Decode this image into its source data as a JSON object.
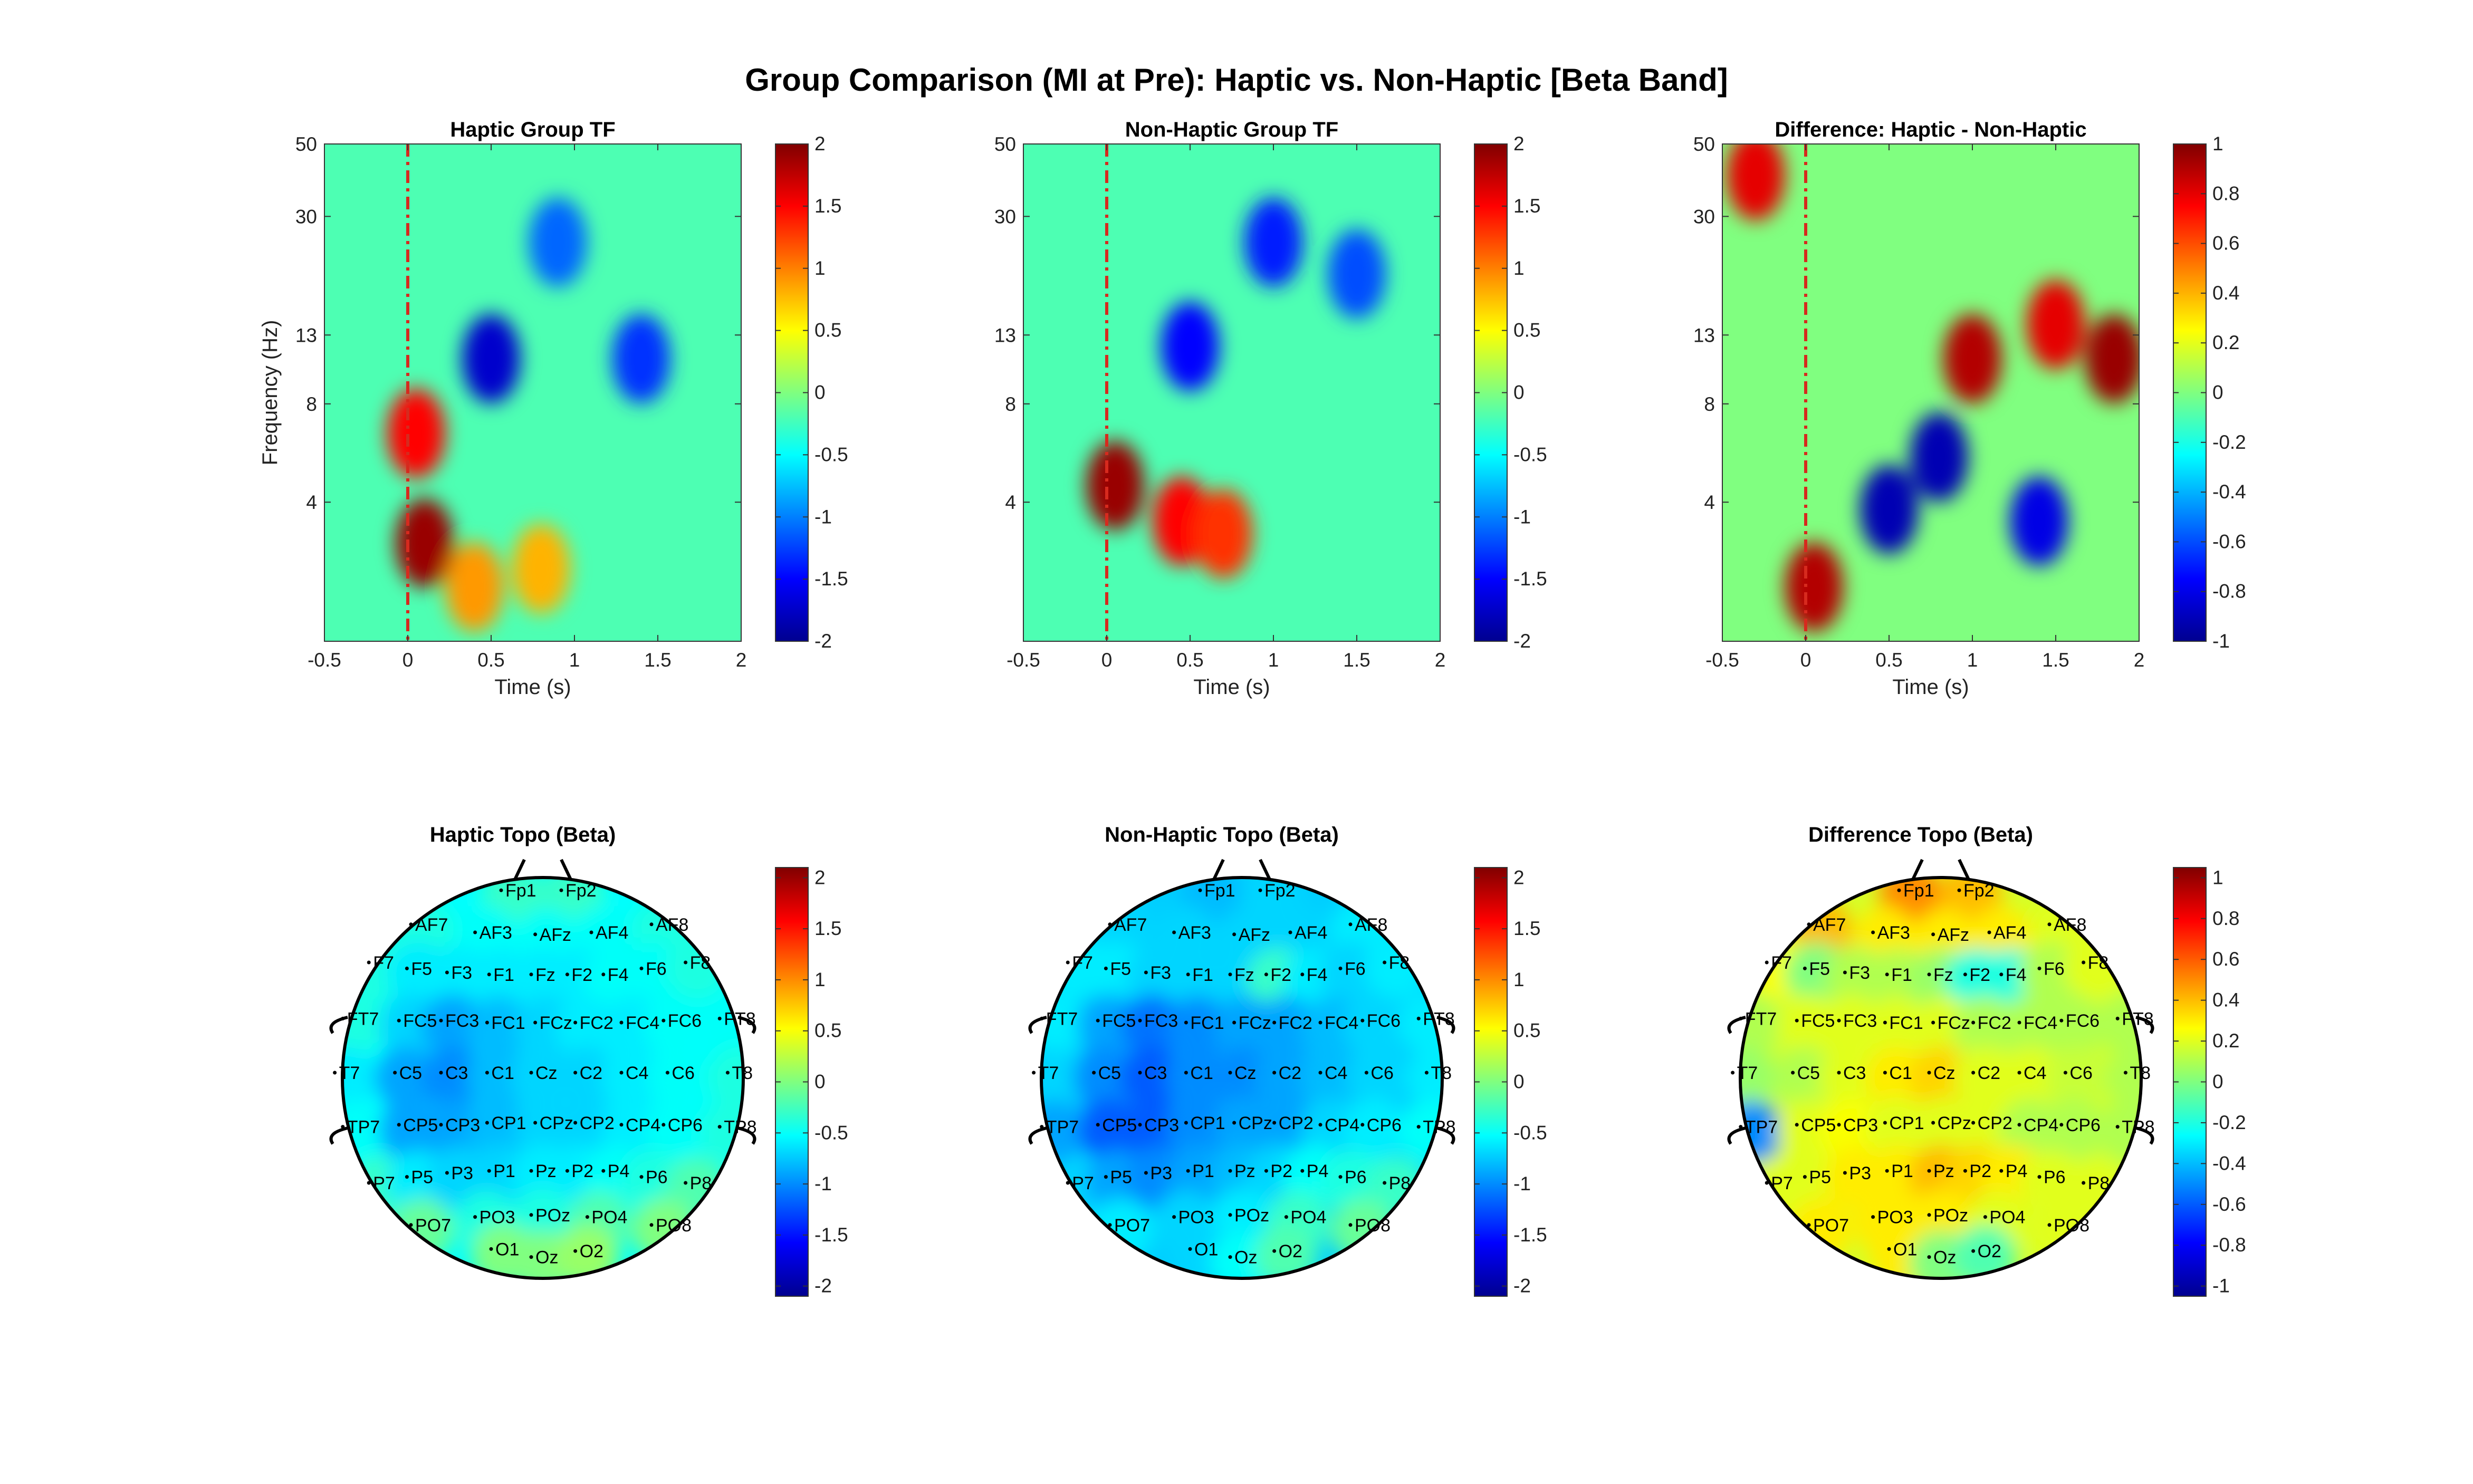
{
  "figure": {
    "title": "Group Comparison (MI at Pre): Haptic vs. Non-Haptic [Beta Band]"
  },
  "chart_data": [
    {
      "type": "heatmap",
      "title": "Haptic Group TF",
      "xlabel": "Time (s)",
      "ylabel": "Frequency (Hz)",
      "xlim": [
        -0.5,
        2
      ],
      "ylim": [
        1.5,
        50
      ],
      "yscale": "log",
      "xticks": [
        "-0.5",
        "0",
        "0.5",
        "1",
        "1.5",
        "2"
      ],
      "yticks": [
        "4",
        "8",
        "13",
        "30",
        "50"
      ],
      "colormap": "jet",
      "clim": [
        -2,
        2
      ],
      "cbar_ticks": [
        "-2",
        "-1.5",
        "-1",
        "-0.5",
        "0",
        "0.5",
        "1",
        "1.5",
        "2"
      ],
      "event_marker_x": 0,
      "event_marker_color": "#d62a1e",
      "features": [
        {
          "t": 0.1,
          "f": 3.0,
          "value": 1.9
        },
        {
          "t": 0.05,
          "f": 6.5,
          "value": 1.5
        },
        {
          "t": 0.4,
          "f": 2.2,
          "value": 0.9
        },
        {
          "t": 0.8,
          "f": 2.5,
          "value": 0.8
        },
        {
          "t": 0.5,
          "f": 11,
          "value": -1.7
        },
        {
          "t": 1.4,
          "f": 11,
          "value": -1.3
        },
        {
          "t": 0.9,
          "f": 25,
          "value": -1.1
        }
      ]
    },
    {
      "type": "heatmap",
      "title": "Non-Haptic Group TF",
      "xlabel": "Time (s)",
      "ylabel": "",
      "xlim": [
        -0.5,
        2
      ],
      "ylim": [
        1.5,
        50
      ],
      "yscale": "log",
      "xticks": [
        "-0.5",
        "0",
        "0.5",
        "1",
        "1.5",
        "2"
      ],
      "yticks": [
        "4",
        "8",
        "13",
        "30",
        "50"
      ],
      "colormap": "jet",
      "clim": [
        -2,
        2
      ],
      "cbar_ticks": [
        "-2",
        "-1.5",
        "-1",
        "-0.5",
        "0",
        "0.5",
        "1",
        "1.5",
        "2"
      ],
      "event_marker_x": 0,
      "event_marker_color": "#d62a1e",
      "features": [
        {
          "t": 0.05,
          "f": 4.5,
          "value": 1.9
        },
        {
          "t": 0.45,
          "f": 3.5,
          "value": 1.5
        },
        {
          "t": 0.7,
          "f": 3.2,
          "value": 1.3
        },
        {
          "t": 0.5,
          "f": 12,
          "value": -1.5
        },
        {
          "t": 1.0,
          "f": 25,
          "value": -1.4
        },
        {
          "t": 1.5,
          "f": 20,
          "value": -1.2
        }
      ]
    },
    {
      "type": "heatmap",
      "title": "Difference: Haptic - Non-Haptic",
      "xlabel": "Time (s)",
      "ylabel": "",
      "xlim": [
        -0.5,
        2
      ],
      "ylim": [
        1.5,
        50
      ],
      "yscale": "log",
      "xticks": [
        "-0.5",
        "0",
        "0.5",
        "1",
        "1.5",
        "2"
      ],
      "yticks": [
        "4",
        "8",
        "13",
        "30",
        "50"
      ],
      "colormap": "jet",
      "clim": [
        -1,
        1
      ],
      "cbar_ticks": [
        "-1",
        "-0.8",
        "-0.6",
        "-0.4",
        "-0.2",
        "0",
        "0.2",
        "0.4",
        "0.6",
        "0.8",
        "1"
      ],
      "event_marker_x": 0,
      "event_marker_color": "#d62a1e",
      "features": [
        {
          "t": 0.05,
          "f": 2.2,
          "value": 0.9
        },
        {
          "t": 0.5,
          "f": 3.8,
          "value": -0.9
        },
        {
          "t": 0.8,
          "f": 5.5,
          "value": -0.9
        },
        {
          "t": 1.4,
          "f": 3.5,
          "value": -0.8
        },
        {
          "t": 1.0,
          "f": 11,
          "value": 0.9
        },
        {
          "t": 1.85,
          "f": 11,
          "value": 0.95
        },
        {
          "t": 1.5,
          "f": 14,
          "value": 0.8
        },
        {
          "t": -0.3,
          "f": 40,
          "value": 0.8
        }
      ]
    },
    {
      "type": "heatmap",
      "subtype": "topoplot",
      "title": "Haptic Topo (Beta)",
      "colormap": "jet",
      "clim": [
        -2.1,
        2.1
      ],
      "cbar_ticks": [
        "-2",
        "-1.5",
        "-1",
        "-0.5",
        "0",
        "0.5",
        "1",
        "1.5",
        "2"
      ],
      "electrodes": [
        {
          "label": "Fp1",
          "value": -0.3
        },
        {
          "label": "Fp2",
          "value": -0.3
        },
        {
          "label": "AF7",
          "value": -0.4
        },
        {
          "label": "AF3",
          "value": -0.5
        },
        {
          "label": "AFz",
          "value": -0.5
        },
        {
          "label": "AF4",
          "value": -0.5
        },
        {
          "label": "AF8",
          "value": -0.4
        },
        {
          "label": "F7",
          "value": -0.4
        },
        {
          "label": "F5",
          "value": -0.6
        },
        {
          "label": "F3",
          "value": -0.6
        },
        {
          "label": "F1",
          "value": -0.6
        },
        {
          "label": "Fz",
          "value": -0.6
        },
        {
          "label": "F2",
          "value": -0.6
        },
        {
          "label": "F4",
          "value": -0.5
        },
        {
          "label": "F6",
          "value": -0.5
        },
        {
          "label": "F8",
          "value": -0.4
        },
        {
          "label": "FT7",
          "value": -0.4
        },
        {
          "label": "FC5",
          "value": -0.7
        },
        {
          "label": "FC3",
          "value": -0.9
        },
        {
          "label": "FC1",
          "value": -0.8
        },
        {
          "label": "FCz",
          "value": -0.7
        },
        {
          "label": "FC2",
          "value": -0.6
        },
        {
          "label": "FC4",
          "value": -0.6
        },
        {
          "label": "FC6",
          "value": -0.5
        },
        {
          "label": "FT8",
          "value": -0.5
        },
        {
          "label": "T7",
          "value": -0.6
        },
        {
          "label": "C5",
          "value": -0.9
        },
        {
          "label": "C3",
          "value": -1.0
        },
        {
          "label": "C1",
          "value": -0.8
        },
        {
          "label": "Cz",
          "value": -0.7
        },
        {
          "label": "C2",
          "value": -0.7
        },
        {
          "label": "C4",
          "value": -0.6
        },
        {
          "label": "C6",
          "value": -0.5
        },
        {
          "label": "T8",
          "value": -0.4
        },
        {
          "label": "TP7",
          "value": -0.5
        },
        {
          "label": "CP5",
          "value": -0.9
        },
        {
          "label": "CP3",
          "value": -0.9
        },
        {
          "label": "CP1",
          "value": -0.8
        },
        {
          "label": "CPz",
          "value": -0.7
        },
        {
          "label": "CP2",
          "value": -0.7
        },
        {
          "label": "CP4",
          "value": -0.6
        },
        {
          "label": "CP6",
          "value": -0.5
        },
        {
          "label": "TP8",
          "value": -0.4
        },
        {
          "label": "P7",
          "value": -0.3
        },
        {
          "label": "P5",
          "value": -0.6
        },
        {
          "label": "P3",
          "value": -0.7
        },
        {
          "label": "P1",
          "value": -0.7
        },
        {
          "label": "Pz",
          "value": -0.6
        },
        {
          "label": "P2",
          "value": -0.6
        },
        {
          "label": "P4",
          "value": -0.5
        },
        {
          "label": "P6",
          "value": -0.4
        },
        {
          "label": "P8",
          "value": -0.2
        },
        {
          "label": "PO7",
          "value": -0.1
        },
        {
          "label": "PO3",
          "value": -0.4
        },
        {
          "label": "POz",
          "value": -0.4
        },
        {
          "label": "PO4",
          "value": -0.2
        },
        {
          "label": "PO8",
          "value": 0.0
        },
        {
          "label": "O1",
          "value": 0.0
        },
        {
          "label": "Oz",
          "value": 0.0
        },
        {
          "label": "O2",
          "value": 0.1
        }
      ]
    },
    {
      "type": "heatmap",
      "subtype": "topoplot",
      "title": "Non-Haptic Topo (Beta)",
      "colormap": "jet",
      "clim": [
        -2.1,
        2.1
      ],
      "cbar_ticks": [
        "-2",
        "-1.5",
        "-1",
        "-0.5",
        "0",
        "0.5",
        "1",
        "1.5",
        "2"
      ],
      "electrodes": [
        {
          "label": "Fp1",
          "value": -0.8
        },
        {
          "label": "Fp2",
          "value": -0.7
        },
        {
          "label": "AF7",
          "value": -0.7
        },
        {
          "label": "AF3",
          "value": -0.7
        },
        {
          "label": "AFz",
          "value": -0.7
        },
        {
          "label": "AF4",
          "value": -0.7
        },
        {
          "label": "AF8",
          "value": -0.6
        },
        {
          "label": "F7",
          "value": -0.6
        },
        {
          "label": "F5",
          "value": -0.6
        },
        {
          "label": "F3",
          "value": -0.7
        },
        {
          "label": "F1",
          "value": -0.7
        },
        {
          "label": "Fz",
          "value": -0.7
        },
        {
          "label": "F2",
          "value": -0.3
        },
        {
          "label": "F4",
          "value": -0.6
        },
        {
          "label": "F6",
          "value": -0.7
        },
        {
          "label": "F8",
          "value": -0.6
        },
        {
          "label": "FT7",
          "value": -0.6
        },
        {
          "label": "FC5",
          "value": -0.9
        },
        {
          "label": "FC3",
          "value": -1.1
        },
        {
          "label": "FC1",
          "value": -1.0
        },
        {
          "label": "FCz",
          "value": -0.9
        },
        {
          "label": "FC2",
          "value": -0.9
        },
        {
          "label": "FC4",
          "value": -0.8
        },
        {
          "label": "FC6",
          "value": -0.7
        },
        {
          "label": "FT8",
          "value": -0.6
        },
        {
          "label": "T7",
          "value": -0.7
        },
        {
          "label": "C5",
          "value": -1.0
        },
        {
          "label": "C3",
          "value": -1.2
        },
        {
          "label": "C1",
          "value": -1.0
        },
        {
          "label": "Cz",
          "value": -1.0
        },
        {
          "label": "C2",
          "value": -0.9
        },
        {
          "label": "C4",
          "value": -0.8
        },
        {
          "label": "C6",
          "value": -0.7
        },
        {
          "label": "T8",
          "value": -0.6
        },
        {
          "label": "TP7",
          "value": -0.9
        },
        {
          "label": "CP5",
          "value": -1.2
        },
        {
          "label": "CP3",
          "value": -1.2
        },
        {
          "label": "CP1",
          "value": -1.0
        },
        {
          "label": "CPz",
          "value": -0.9
        },
        {
          "label": "CP2",
          "value": -0.9
        },
        {
          "label": "CP4",
          "value": -0.7
        },
        {
          "label": "CP6",
          "value": -0.6
        },
        {
          "label": "TP8",
          "value": -0.5
        },
        {
          "label": "P7",
          "value": -0.7
        },
        {
          "label": "P5",
          "value": -0.9
        },
        {
          "label": "P3",
          "value": -1.0
        },
        {
          "label": "P1",
          "value": -0.9
        },
        {
          "label": "Pz",
          "value": -0.8
        },
        {
          "label": "P2",
          "value": -0.7
        },
        {
          "label": "P4",
          "value": -0.5
        },
        {
          "label": "P6",
          "value": -0.4
        },
        {
          "label": "P8",
          "value": -0.3
        },
        {
          "label": "PO7",
          "value": -0.6
        },
        {
          "label": "PO3",
          "value": -0.7
        },
        {
          "label": "POz",
          "value": -0.6
        },
        {
          "label": "PO4",
          "value": -0.3
        },
        {
          "label": "PO8",
          "value": -0.1
        },
        {
          "label": "O1",
          "value": -0.7
        },
        {
          "label": "Oz",
          "value": -0.5
        },
        {
          "label": "O2",
          "value": -0.2
        }
      ]
    },
    {
      "type": "heatmap",
      "subtype": "topoplot",
      "title": "Difference Topo (Beta)",
      "colormap": "jet",
      "clim": [
        -1.05,
        1.05
      ],
      "cbar_ticks": [
        "-1",
        "-0.8",
        "-0.6",
        "-0.4",
        "-0.2",
        "0",
        "0.2",
        "0.4",
        "0.6",
        "0.8",
        "1"
      ],
      "electrodes": [
        {
          "label": "Fp1",
          "value": 0.5
        },
        {
          "label": "Fp2",
          "value": 0.4
        },
        {
          "label": "AF7",
          "value": 0.4
        },
        {
          "label": "AF3",
          "value": 0.3
        },
        {
          "label": "AFz",
          "value": 0.3
        },
        {
          "label": "AF4",
          "value": 0.3
        },
        {
          "label": "AF8",
          "value": 0.2
        },
        {
          "label": "F7",
          "value": 0.25
        },
        {
          "label": "F5",
          "value": 0.0
        },
        {
          "label": "F3",
          "value": 0.1
        },
        {
          "label": "F1",
          "value": 0.1
        },
        {
          "label": "Fz",
          "value": 0.05
        },
        {
          "label": "F2",
          "value": -0.2
        },
        {
          "label": "F4",
          "value": -0.2
        },
        {
          "label": "F6",
          "value": 0.1
        },
        {
          "label": "F8",
          "value": 0.2
        },
        {
          "label": "FT7",
          "value": 0.1
        },
        {
          "label": "FC5",
          "value": 0.2
        },
        {
          "label": "FC3",
          "value": 0.2
        },
        {
          "label": "FC1",
          "value": 0.2
        },
        {
          "label": "FCz",
          "value": 0.2
        },
        {
          "label": "FC2",
          "value": 0.1
        },
        {
          "label": "FC4",
          "value": 0.1
        },
        {
          "label": "FC6",
          "value": 0.1
        },
        {
          "label": "FT8",
          "value": 0.1
        },
        {
          "label": "T7",
          "value": 0.05
        },
        {
          "label": "C5",
          "value": 0.1
        },
        {
          "label": "C3",
          "value": 0.2
        },
        {
          "label": "C1",
          "value": 0.3
        },
        {
          "label": "Cz",
          "value": 0.35
        },
        {
          "label": "C2",
          "value": 0.2
        },
        {
          "label": "C4",
          "value": 0.2
        },
        {
          "label": "C6",
          "value": 0.15
        },
        {
          "label": "T8",
          "value": 0.1
        },
        {
          "label": "TP7",
          "value": -0.5
        },
        {
          "label": "CP5",
          "value": 0.2
        },
        {
          "label": "CP3",
          "value": 0.25
        },
        {
          "label": "CP1",
          "value": 0.2
        },
        {
          "label": "CPz",
          "value": 0.2
        },
        {
          "label": "CP2",
          "value": 0.2
        },
        {
          "label": "CP4",
          "value": 0.1
        },
        {
          "label": "CP6",
          "value": 0.1
        },
        {
          "label": "TP8",
          "value": 0.1
        },
        {
          "label": "P7",
          "value": 0.2
        },
        {
          "label": "P5",
          "value": 0.2
        },
        {
          "label": "P3",
          "value": 0.3
        },
        {
          "label": "P1",
          "value": 0.3
        },
        {
          "label": "Pz",
          "value": 0.4
        },
        {
          "label": "P2",
          "value": 0.35
        },
        {
          "label": "P4",
          "value": 0.3
        },
        {
          "label": "P6",
          "value": 0.2
        },
        {
          "label": "P8",
          "value": 0.2
        },
        {
          "label": "PO7",
          "value": 0.3
        },
        {
          "label": "PO3",
          "value": 0.3
        },
        {
          "label": "POz",
          "value": 0.3
        },
        {
          "label": "PO4",
          "value": 0.2
        },
        {
          "label": "PO8",
          "value": 0.2
        },
        {
          "label": "O1",
          "value": 0.3
        },
        {
          "label": "Oz",
          "value": 0.0
        },
        {
          "label": "O2",
          "value": -0.1
        }
      ]
    }
  ]
}
